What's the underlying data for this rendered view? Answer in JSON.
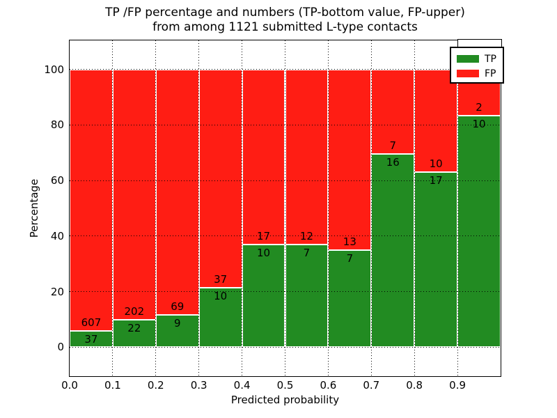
{
  "title": {
    "line1": "TP /FP percentage and numbers (TP-bottom value, FP-upper)",
    "line2": "from among 1121 submitted L-type contacts"
  },
  "axes": {
    "xlabel": "Predicted probability",
    "ylabel": "Percentage",
    "x_tick_labels": [
      "0.0",
      "0.1",
      "0.2",
      "0.3",
      "0.4",
      "0.5",
      "0.6",
      "0.7",
      "0.8",
      "0.9"
    ],
    "y_tick_labels": [
      "0",
      "20",
      "40",
      "60",
      "80",
      "100"
    ]
  },
  "legend": {
    "items": [
      {
        "label": "TP",
        "color": "#228b22"
      },
      {
        "label": "FP",
        "color": "#ff1d14"
      }
    ]
  },
  "colors": {
    "tp": "#228b22",
    "fp": "#ff1d14",
    "bar_edge": "#ffffff",
    "grid": "#000000",
    "axis": "#000000",
    "background": "#ffffff"
  },
  "chart_data": {
    "type": "bar",
    "stacked": true,
    "values_are": "percent of bin total; numeric labels show raw counts (TP bottom, FP upper)",
    "title": "TP /FP percentage and numbers (TP-bottom value, FP-upper) from among 1121 submitted L-type contacts",
    "xlabel": "Predicted probability",
    "ylabel": "Percentage",
    "categories": [
      "0.0",
      "0.1",
      "0.2",
      "0.3",
      "0.4",
      "0.5",
      "0.6",
      "0.7",
      "0.8",
      "0.9"
    ],
    "bin_width": 0.1,
    "series": [
      {
        "name": "TP",
        "color": "#228b22",
        "counts": [
          37,
          22,
          9,
          10,
          10,
          7,
          7,
          16,
          17,
          10
        ]
      },
      {
        "name": "FP",
        "color": "#ff1d14",
        "counts": [
          607,
          202,
          69,
          37,
          17,
          12,
          13,
          7,
          10,
          2
        ]
      }
    ],
    "total_contacts": 1121,
    "xlim": [
      0.0,
      1.0
    ],
    "ylim": [
      -10.5,
      110.5
    ],
    "y_ticks": [
      0,
      20,
      40,
      60,
      80,
      100
    ],
    "grid": "dotted, on both axes, drawn over bars",
    "legend_position": "upper right"
  }
}
